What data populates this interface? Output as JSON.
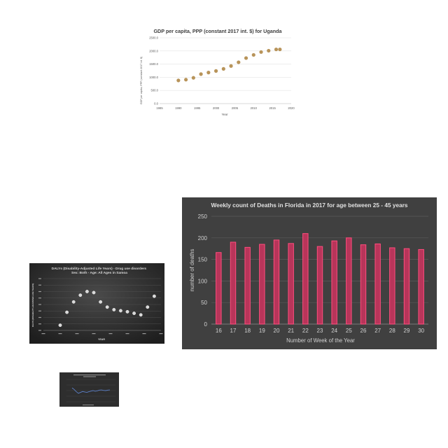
{
  "colors": {
    "gdp_marker": "#b8945a",
    "dark_bg": "#404040",
    "bar_fill": "#b8355a",
    "bar_stroke": "#ff4d7d",
    "daly_marker": "#d9d9d9",
    "small_line": "#5b7fc7"
  },
  "chart_data": [
    {
      "id": "gdp",
      "type": "scatter",
      "title": "GDP per capita, PPP (constant 2017 int. $) for Uganda",
      "xlabel": "Year",
      "ylabel": "GDP per capita, PPP (constant 2017 int. $)",
      "xlim": [
        1985,
        2020
      ],
      "ylim": [
        0,
        2500
      ],
      "xticks": [
        "1985",
        "1990",
        "1995",
        "2000",
        "2005",
        "2010",
        "2015",
        "2020"
      ],
      "yticks": [
        "0.0",
        "500.0",
        "1000.0",
        "1500.0",
        "2000.0",
        "2500.0"
      ],
      "grid": true,
      "x": [
        1990,
        1992,
        1994,
        1996,
        1998,
        2000,
        2002,
        2004,
        2006,
        2008,
        2010,
        2012,
        2014,
        2016,
        2017
      ],
      "y": [
        880,
        910,
        980,
        1120,
        1180,
        1240,
        1320,
        1430,
        1570,
        1730,
        1850,
        1960,
        2010,
        2060,
        2060
      ]
    },
    {
      "id": "deaths",
      "type": "bar",
      "title": "Weekly count of Deaths in Florida in 2017 for age between 25 - 45 years",
      "xlabel": "Number of Week of the Year",
      "ylabel": "number of deaths",
      "ylim": [
        0,
        250
      ],
      "yticks": [
        "0",
        "50",
        "100",
        "150",
        "200",
        "250"
      ],
      "grid": true,
      "categories": [
        "16",
        "17",
        "18",
        "19",
        "20",
        "21",
        "22",
        "23",
        "24",
        "25",
        "26",
        "27",
        "28",
        "29",
        "30"
      ],
      "values": [
        166,
        190,
        178,
        185,
        195,
        187,
        210,
        180,
        193,
        200,
        184,
        186,
        177,
        175,
        173
      ]
    },
    {
      "id": "daly",
      "type": "scatter",
      "title": "DALYs (Disability-Adjusted Life Years) - Drug use disorders - Sex: Both - Age: All Ages in Samoa",
      "xlabel": "YEAR",
      "ylabel": "DALYS (DISABILITY-ADJUSTED LIFE YEARS)",
      "xlim": [
        1985,
        2020
      ],
      "ylim": [
        0,
        100
      ],
      "grid": true,
      "x": [
        1990,
        1992,
        1994,
        1996,
        1998,
        2000,
        2002,
        2004,
        2006,
        2008,
        2010,
        2012,
        2014,
        2016,
        2018
      ],
      "y": [
        10,
        35,
        55,
        68,
        75,
        73,
        55,
        45,
        40,
        38,
        36,
        33,
        30,
        45,
        66
      ]
    },
    {
      "id": "small",
      "type": "line",
      "grid": true,
      "y": [
        62,
        55,
        45,
        38,
        42,
        46,
        44,
        42,
        45,
        48,
        50,
        47,
        49,
        52,
        53,
        51,
        50,
        52,
        53
      ]
    }
  ]
}
